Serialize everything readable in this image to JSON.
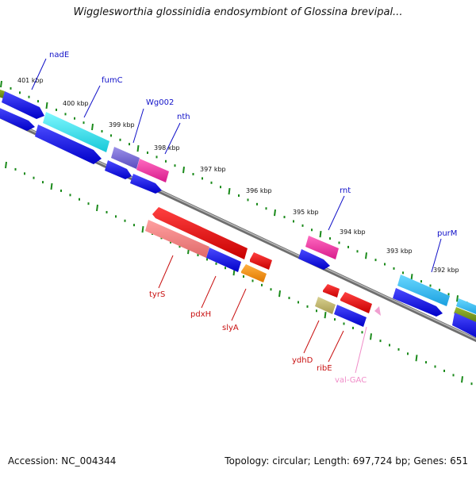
{
  "header": {
    "title": "Wigglesworthia glossinidia endosymbiont of Glossina brevipal..."
  },
  "footer": {
    "accession": "Accession: NC_004344",
    "summary": "Topology: circular; Length: 697,724 bp; Genes: 651"
  },
  "colors": {
    "backbone": "#7a7a7a",
    "tick": "#1a8a1a",
    "top_label": "#1010c8",
    "bottom_label": "#c81010",
    "trna_label": "#f08cc8"
  },
  "kbp_labels": [
    "401 kbp",
    "400 kbp",
    "399 kbp",
    "398 kbp",
    "397 kbp",
    "396 kbp",
    "395 kbp",
    "394 kbp",
    "393 kbp",
    "392 kbp"
  ],
  "top_genes": [
    "nadE",
    "fumC",
    "Wg002",
    "nth",
    "rnt",
    "purM"
  ],
  "bottom_genes": [
    "tyrS",
    "pdxH",
    "slyA",
    "ydhD",
    "ribE",
    "val-GAC"
  ]
}
